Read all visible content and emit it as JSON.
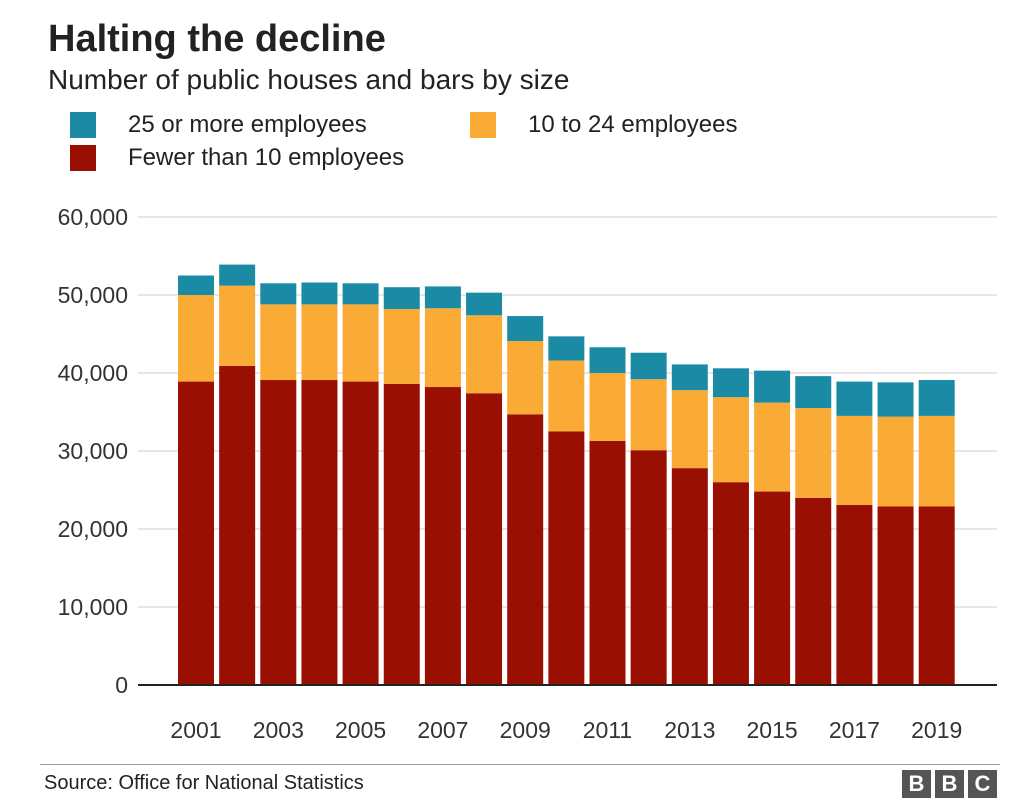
{
  "title": "Halting the decline",
  "subtitle": "Number of public houses and bars by size",
  "source": "Source: Office for National Statistics",
  "logo_text": "BBC",
  "colors": {
    "large": "#1b8aa5",
    "medium": "#faab36",
    "small": "#990f02",
    "grid": "#cccccc",
    "baseline": "#222222"
  },
  "legend": [
    {
      "label": "25 or more employees",
      "color": "#1b8aa5"
    },
    {
      "label": "10 to 24 employees",
      "color": "#faab36"
    },
    {
      "label": "Fewer than 10 employees",
      "color": "#990f02"
    }
  ],
  "chart_data": {
    "type": "bar",
    "stacked": true,
    "title": "Halting the decline",
    "subtitle": "Number of public houses and bars by size",
    "categories": [
      "2001",
      "2002",
      "2003",
      "2004",
      "2005",
      "2006",
      "2007",
      "2008",
      "2009",
      "2010",
      "2011",
      "2012",
      "2013",
      "2014",
      "2015",
      "2016",
      "2017",
      "2018",
      "2019"
    ],
    "tick_labels_x": [
      "2001",
      "2003",
      "2005",
      "2007",
      "2009",
      "2011",
      "2013",
      "2015",
      "2017",
      "2019"
    ],
    "yticks": [
      "0",
      "10,000",
      "20,000",
      "30,000",
      "40,000",
      "50,000",
      "60,000"
    ],
    "ylim": [
      0,
      60000
    ],
    "grid": true,
    "legend_position": "top-left",
    "series": [
      {
        "name": "Fewer than 10 employees",
        "color": "#990f02",
        "values": [
          38900,
          40900,
          39100,
          39100,
          38900,
          38600,
          38200,
          37400,
          34700,
          32500,
          31300,
          30100,
          27800,
          26000,
          24800,
          24000,
          23100,
          22900,
          22900
        ]
      },
      {
        "name": "10 to 24 employees",
        "color": "#faab36",
        "values": [
          11100,
          10300,
          9700,
          9700,
          9900,
          9600,
          10100,
          10000,
          9400,
          9100,
          8700,
          9100,
          10000,
          10900,
          11400,
          11500,
          11400,
          11500,
          11600
        ]
      },
      {
        "name": "25 or more employees",
        "color": "#1b8aa5",
        "values": [
          2500,
          2700,
          2700,
          2800,
          2700,
          2800,
          2800,
          2900,
          3200,
          3100,
          3300,
          3400,
          3300,
          3700,
          4100,
          4100,
          4400,
          4400,
          4600
        ]
      }
    ]
  }
}
